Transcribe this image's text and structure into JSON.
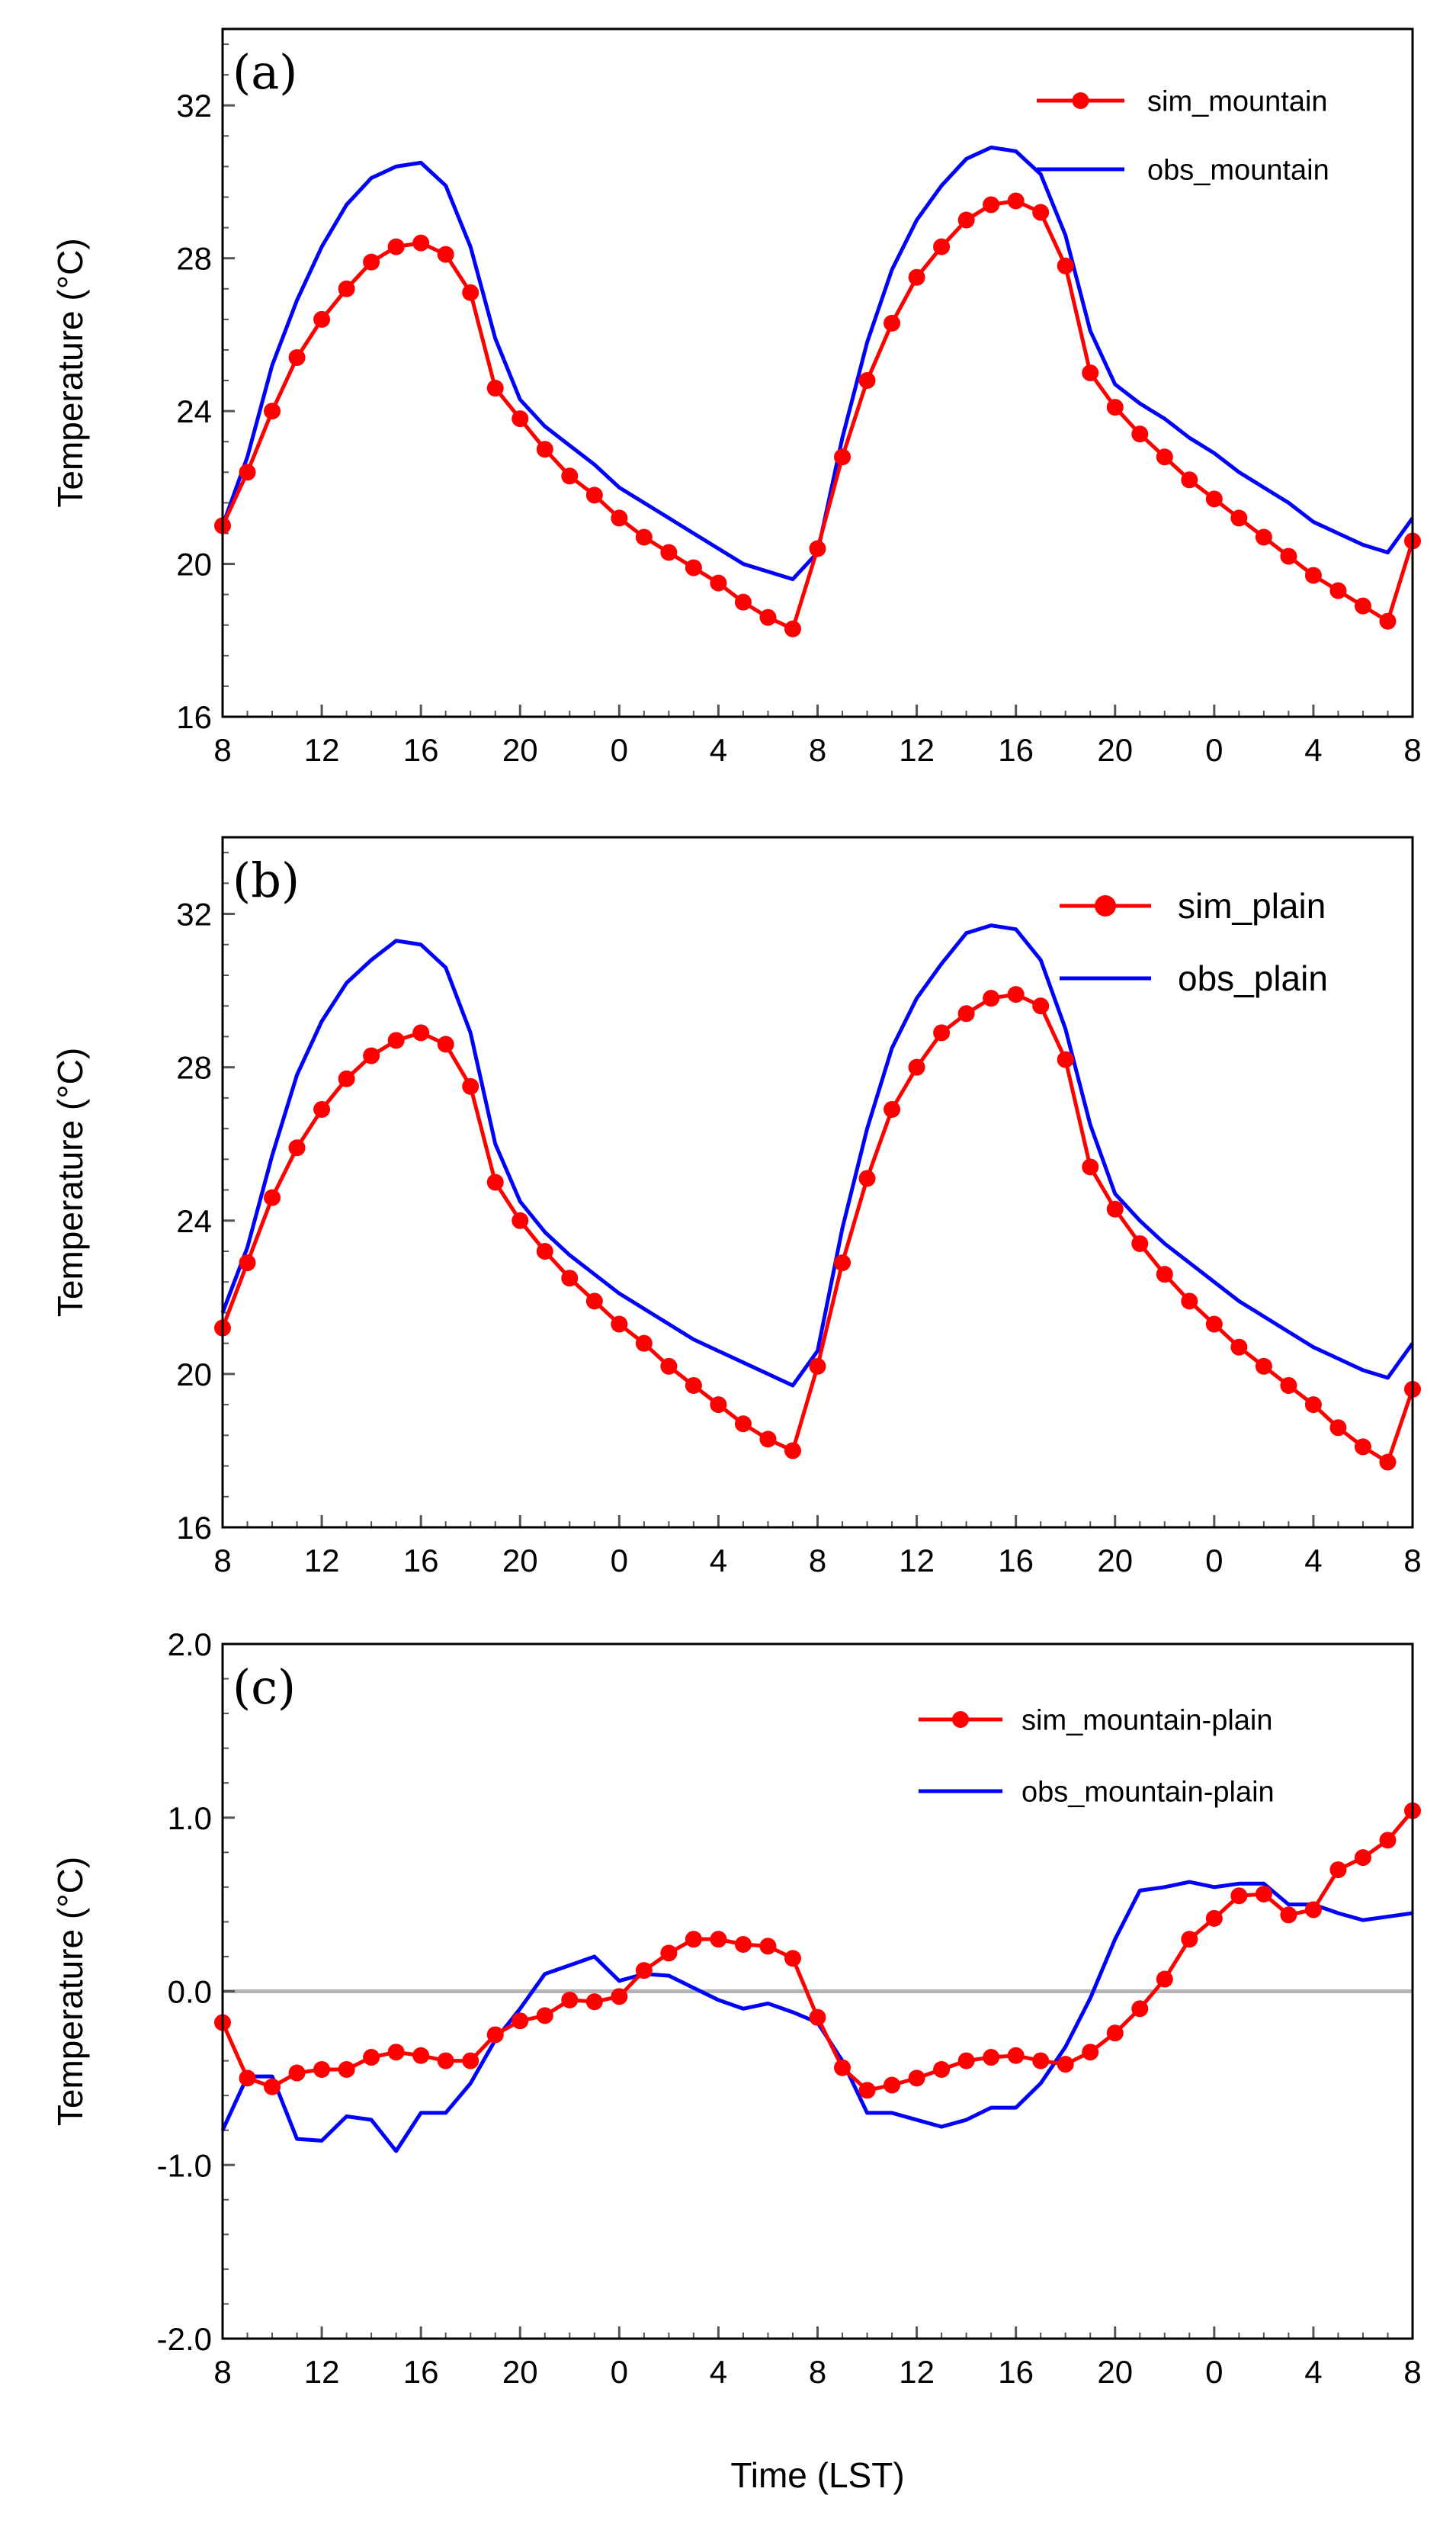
{
  "x_tick_labels": [
    "8",
    "12",
    "16",
    "20",
    "0",
    "4",
    "8",
    "12",
    "16",
    "20",
    "0",
    "4",
    "8"
  ],
  "xlabel": "Time (LST)",
  "colors": {
    "sim": "#ff0000",
    "obs": "#0000ff",
    "zero_line": "#b4b4b4",
    "axis": "#000000"
  },
  "chart_data": [
    {
      "type": "line",
      "panel_label": "(a)",
      "ylabel": "Temperature (°C)",
      "ylim": [
        16,
        34
      ],
      "y_ticks": [
        16,
        20,
        24,
        28,
        32
      ],
      "y_tick_labels": [
        "16",
        "20",
        "24",
        "28",
        "32"
      ],
      "x": [
        0,
        1,
        2,
        3,
        4,
        5,
        6,
        7,
        8,
        9,
        10,
        11,
        12,
        13,
        14,
        15,
        16,
        17,
        18,
        19,
        20,
        21,
        22,
        23,
        24,
        25,
        26,
        27,
        28,
        29,
        30,
        31,
        32,
        33,
        34,
        35,
        36,
        37,
        38,
        39,
        40,
        41,
        42,
        43,
        44,
        45,
        46,
        47,
        48
      ],
      "series": [
        {
          "name": "sim_mountain",
          "values": [
            21.0,
            22.4,
            24.0,
            25.4,
            26.4,
            27.2,
            27.9,
            28.3,
            28.4,
            28.1,
            27.1,
            24.6,
            23.8,
            23.0,
            22.3,
            21.8,
            21.2,
            20.7,
            20.3,
            19.9,
            19.5,
            19.0,
            18.6,
            18.3,
            20.4,
            22.8,
            24.8,
            26.3,
            27.5,
            28.3,
            29.0,
            29.4,
            29.5,
            29.2,
            27.8,
            25.0,
            24.1,
            23.4,
            22.8,
            22.2,
            21.7,
            21.2,
            20.7,
            20.2,
            19.7,
            19.3,
            18.9,
            18.5,
            20.6
          ]
        },
        {
          "name": "obs_mountain",
          "values": [
            21.0,
            22.8,
            25.2,
            26.9,
            28.3,
            29.4,
            30.1,
            30.4,
            30.5,
            29.9,
            28.3,
            25.9,
            24.3,
            23.6,
            23.1,
            22.6,
            22.0,
            21.6,
            21.2,
            20.8,
            20.4,
            20.0,
            19.8,
            19.6,
            20.3,
            23.3,
            25.8,
            27.7,
            29.0,
            29.9,
            30.6,
            30.9,
            30.8,
            30.2,
            28.6,
            26.1,
            24.7,
            24.2,
            23.8,
            23.3,
            22.9,
            22.4,
            22.0,
            21.6,
            21.1,
            20.8,
            20.5,
            20.3,
            21.2
          ]
        }
      ]
    },
    {
      "type": "line",
      "panel_label": "(b)",
      "ylabel": "Temperature (°C)",
      "ylim": [
        16,
        34
      ],
      "y_ticks": [
        16,
        20,
        24,
        28,
        32
      ],
      "y_tick_labels": [
        "16",
        "20",
        "24",
        "28",
        "32"
      ],
      "x": [
        0,
        1,
        2,
        3,
        4,
        5,
        6,
        7,
        8,
        9,
        10,
        11,
        12,
        13,
        14,
        15,
        16,
        17,
        18,
        19,
        20,
        21,
        22,
        23,
        24,
        25,
        26,
        27,
        28,
        29,
        30,
        31,
        32,
        33,
        34,
        35,
        36,
        37,
        38,
        39,
        40,
        41,
        42,
        43,
        44,
        45,
        46,
        47,
        48
      ],
      "series": [
        {
          "name": "sim_plain",
          "values": [
            21.2,
            22.9,
            24.6,
            25.9,
            26.9,
            27.7,
            28.3,
            28.7,
            28.9,
            28.6,
            27.5,
            25.0,
            24.0,
            23.2,
            22.5,
            21.9,
            21.3,
            20.8,
            20.2,
            19.7,
            19.2,
            18.7,
            18.3,
            18.0,
            20.2,
            22.9,
            25.1,
            26.9,
            28.0,
            28.9,
            29.4,
            29.8,
            29.9,
            29.6,
            28.2,
            25.4,
            24.3,
            23.4,
            22.6,
            21.9,
            21.3,
            20.7,
            20.2,
            19.7,
            19.2,
            18.6,
            18.1,
            17.7,
            19.6
          ]
        },
        {
          "name": "obs_plain",
          "values": [
            21.6,
            23.3,
            25.7,
            27.8,
            29.2,
            30.2,
            30.8,
            31.3,
            31.2,
            30.6,
            28.9,
            26.0,
            24.5,
            23.7,
            23.1,
            22.6,
            22.1,
            21.7,
            21.3,
            20.9,
            20.6,
            20.3,
            20.0,
            19.7,
            20.6,
            23.8,
            26.4,
            28.5,
            29.8,
            30.7,
            31.5,
            31.7,
            31.6,
            30.8,
            29.0,
            26.5,
            24.7,
            24.0,
            23.4,
            22.9,
            22.4,
            21.9,
            21.5,
            21.1,
            20.7,
            20.4,
            20.1,
            19.9,
            20.8
          ]
        }
      ]
    },
    {
      "type": "line",
      "panel_label": "(c)",
      "ylabel": "Temperature (°C)",
      "ylim": [
        -2.0,
        2.0
      ],
      "y_ticks": [
        -2.0,
        -1.0,
        0.0,
        1.0,
        2.0
      ],
      "y_tick_labels": [
        "-2.0",
        "-1.0",
        "0.0",
        "1.0",
        "2.0"
      ],
      "reference_line": 0.0,
      "x": [
        0,
        1,
        2,
        3,
        4,
        5,
        6,
        7,
        8,
        9,
        10,
        11,
        12,
        13,
        14,
        15,
        16,
        17,
        18,
        19,
        20,
        21,
        22,
        23,
        24,
        25,
        26,
        27,
        28,
        29,
        30,
        31,
        32,
        33,
        34,
        35,
        36,
        37,
        38,
        39,
        40,
        41,
        42,
        43,
        44,
        45,
        46,
        47,
        48
      ],
      "series": [
        {
          "name": "sim_mountain-plain",
          "values": [
            -0.18,
            -0.5,
            -0.55,
            -0.47,
            -0.45,
            -0.45,
            -0.38,
            -0.35,
            -0.37,
            -0.4,
            -0.4,
            -0.25,
            -0.17,
            -0.14,
            -0.05,
            -0.06,
            -0.03,
            0.12,
            0.22,
            0.3,
            0.3,
            0.27,
            0.26,
            0.19,
            -0.15,
            -0.44,
            -0.57,
            -0.54,
            -0.5,
            -0.45,
            -0.4,
            -0.38,
            -0.37,
            -0.4,
            -0.42,
            -0.35,
            -0.24,
            -0.1,
            0.07,
            0.3,
            0.42,
            0.55,
            0.56,
            0.44,
            0.47,
            0.7,
            0.77,
            0.87,
            1.04
          ]
        },
        {
          "name": "obs_mountain-plain",
          "values": [
            -0.8,
            -0.49,
            -0.49,
            -0.85,
            -0.86,
            -0.72,
            -0.74,
            -0.92,
            -0.7,
            -0.7,
            -0.53,
            -0.28,
            -0.1,
            0.1,
            0.15,
            0.2,
            0.06,
            0.1,
            0.09,
            0.02,
            -0.05,
            -0.1,
            -0.07,
            -0.12,
            -0.18,
            -0.4,
            -0.7,
            -0.7,
            -0.74,
            -0.78,
            -0.74,
            -0.67,
            -0.67,
            -0.53,
            -0.32,
            -0.04,
            0.3,
            0.58,
            0.6,
            0.63,
            0.6,
            0.62,
            0.62,
            0.5,
            0.5,
            0.45,
            0.41,
            0.43,
            0.45
          ]
        }
      ]
    }
  ]
}
